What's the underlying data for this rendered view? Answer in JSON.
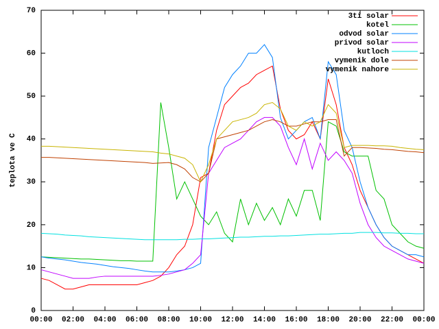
{
  "chart_data": {
    "type": "line",
    "ylabel": "teplota ve C",
    "x": [
      0,
      0.5,
      1,
      1.5,
      2,
      2.5,
      3,
      3.5,
      4,
      4.5,
      5,
      5.5,
      6,
      6.5,
      7,
      7.5,
      8,
      8.5,
      9,
      9.5,
      10,
      10.5,
      11,
      11.5,
      12,
      12.5,
      13,
      13.5,
      14,
      14.5,
      15,
      15.5,
      16,
      16.5,
      17,
      17.5,
      18,
      18.5,
      19,
      19.5,
      20,
      20.5,
      21,
      21.5,
      22,
      22.5,
      23,
      23.5,
      24
    ],
    "xlim": [
      0,
      24
    ],
    "xticks": [
      {
        "value": 0,
        "label": "00:00"
      },
      {
        "value": 2,
        "label": "02:00"
      },
      {
        "value": 4,
        "label": "04:00"
      },
      {
        "value": 6,
        "label": "06:00"
      },
      {
        "value": 8,
        "label": "08:00"
      },
      {
        "value": 10,
        "label": "10:00"
      },
      {
        "value": 12,
        "label": "12:00"
      },
      {
        "value": 14,
        "label": "14:00"
      },
      {
        "value": 16,
        "label": "16:00"
      },
      {
        "value": 18,
        "label": "18:00"
      },
      {
        "value": 20,
        "label": "20:00"
      },
      {
        "value": 22,
        "label": "22:00"
      },
      {
        "value": 24,
        "label": "00:00"
      }
    ],
    "ylim": [
      0,
      70
    ],
    "yticks": [
      0,
      10,
      20,
      30,
      40,
      50,
      60,
      70
    ],
    "legend": "top-right",
    "series": [
      {
        "name": "3ti solar",
        "color": "#ff0000",
        "values": [
          7.5,
          7,
          6,
          5,
          5,
          5.5,
          6,
          6,
          6,
          6,
          6,
          6,
          6,
          6.5,
          7,
          8,
          10,
          13,
          15,
          20,
          31,
          32,
          42,
          48,
          50,
          52,
          53,
          55,
          56,
          57,
          47,
          42,
          40,
          41,
          44,
          40,
          54,
          48,
          38,
          34,
          28,
          24,
          20,
          17,
          15,
          14,
          13,
          12,
          11
        ]
      },
      {
        "name": "kotel",
        "color": "#00c000",
        "values": [
          12.5,
          12.4,
          12.3,
          12.2,
          12.1,
          12,
          12,
          11.9,
          11.8,
          11.7,
          11.6,
          11.6,
          11.5,
          11.5,
          11.5,
          48.5,
          38,
          26,
          30,
          26,
          22,
          20,
          23,
          18,
          16,
          26,
          20,
          25,
          21,
          24,
          20,
          26,
          22,
          28,
          28,
          21,
          44,
          43,
          37,
          36,
          36,
          36,
          28,
          26,
          20,
          18,
          16,
          15,
          14.5
        ]
      },
      {
        "name": "odvod solar",
        "color": "#0080ff",
        "values": [
          12.5,
          12.2,
          12,
          11.8,
          11.5,
          11.2,
          11,
          10.8,
          10.5,
          10.2,
          10,
          9.8,
          9.5,
          9.2,
          9,
          9,
          9,
          9.2,
          9.5,
          10,
          11,
          38,
          45,
          52,
          55,
          57,
          60,
          60,
          62,
          59,
          45,
          40,
          42,
          44,
          45,
          40,
          58,
          55,
          42,
          38,
          30,
          24,
          20,
          17,
          15,
          14,
          13,
          13,
          12.5
        ]
      },
      {
        "name": "privod solar",
        "color": "#c000ff",
        "values": [
          9.5,
          9,
          8.5,
          8,
          7.5,
          7.5,
          7.5,
          7.8,
          8,
          8,
          8,
          8,
          8,
          8,
          8,
          8.2,
          8.5,
          9,
          9.5,
          11,
          13,
          32,
          35,
          38,
          39,
          40,
          42,
          44,
          45,
          45,
          43,
          38,
          34,
          40,
          33,
          39,
          35,
          37,
          35,
          32,
          25,
          20,
          17,
          15,
          14,
          13,
          12,
          11.5,
          11
        ]
      },
      {
        "name": "kutloch",
        "color": "#00e0e0",
        "values": [
          18,
          17.9,
          17.8,
          17.6,
          17.5,
          17.4,
          17.2,
          17.1,
          17,
          16.9,
          16.8,
          16.7,
          16.6,
          16.5,
          16.5,
          16.5,
          16.5,
          16.5,
          16.6,
          16.6,
          16.7,
          16.7,
          16.8,
          16.9,
          17,
          17.1,
          17.1,
          17.2,
          17.3,
          17.3,
          17.4,
          17.4,
          17.5,
          17.6,
          17.7,
          17.8,
          17.8,
          17.9,
          18,
          18,
          18.2,
          18.2,
          18.2,
          18.1,
          18.1,
          18,
          18,
          17.9,
          17.9
        ]
      },
      {
        "name": "vymenik dole",
        "color": "#c04000",
        "values": [
          35.7,
          35.7,
          35.6,
          35.5,
          35.4,
          35.3,
          35.2,
          35.1,
          35,
          34.9,
          34.8,
          34.7,
          34.6,
          34.5,
          34.3,
          34.4,
          34.5,
          34,
          33,
          31,
          30,
          32,
          40,
          40.5,
          41,
          41.5,
          42,
          43,
          44,
          44.5,
          44,
          43,
          43,
          43.5,
          44,
          44,
          44.5,
          44.5,
          36,
          38,
          38,
          37.9,
          37.8,
          37.6,
          37.5,
          37.3,
          37.1,
          37,
          36.8
        ]
      },
      {
        "name": "vymenik nahore",
        "color": "#c8b400",
        "values": [
          38.3,
          38.3,
          38.2,
          38.1,
          38,
          37.9,
          37.8,
          37.7,
          37.6,
          37.5,
          37.4,
          37.3,
          37.2,
          37.1,
          37,
          36.7,
          36.5,
          36,
          35.5,
          34,
          30,
          34,
          40,
          42,
          44,
          44.5,
          45,
          46,
          48,
          48.5,
          47,
          43,
          42,
          44,
          43,
          44,
          48,
          46,
          38,
          38.5,
          38.5,
          38.5,
          38.4,
          38.4,
          38.3,
          38,
          37.8,
          37.6,
          37.5
        ]
      }
    ]
  }
}
